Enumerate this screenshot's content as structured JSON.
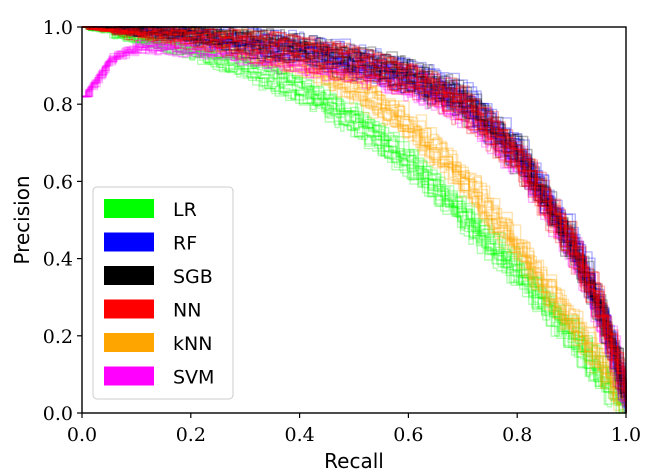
{
  "chart_data": {
    "type": "line",
    "title": "",
    "xlabel": "Recall",
    "ylabel": "Precision",
    "xlim": [
      0,
      1
    ],
    "ylim": [
      0,
      1.0
    ],
    "xticks": [
      "0.0",
      "0.2",
      "0.4",
      "0.6",
      "0.8",
      "1.0"
    ],
    "yticks": [
      "0.0",
      "0.2",
      "0.4",
      "0.6",
      "0.8",
      "1.0"
    ],
    "grid": false,
    "legend_position": "lower-left",
    "series": [
      {
        "name": "LR",
        "color": "#00ff00",
        "runs": 20,
        "x": [
          0,
          0.1,
          0.2,
          0.3,
          0.4,
          0.5,
          0.6,
          0.7,
          0.8,
          0.9,
          0.95,
          1.0
        ],
        "y": [
          1.0,
          0.97,
          0.94,
          0.9,
          0.84,
          0.76,
          0.65,
          0.51,
          0.36,
          0.2,
          0.1,
          0.02
        ]
      },
      {
        "name": "RF",
        "color": "#0000ff",
        "runs": 20,
        "x": [
          0,
          0.1,
          0.2,
          0.3,
          0.4,
          0.5,
          0.6,
          0.7,
          0.8,
          0.9,
          0.95,
          1.0
        ],
        "y": [
          1.0,
          0.99,
          0.98,
          0.96,
          0.94,
          0.91,
          0.87,
          0.81,
          0.67,
          0.43,
          0.26,
          0.03
        ]
      },
      {
        "name": "SGB",
        "color": "#000000",
        "runs": 20,
        "x": [
          0,
          0.1,
          0.2,
          0.3,
          0.4,
          0.5,
          0.6,
          0.7,
          0.8,
          0.9,
          0.95,
          1.0
        ],
        "y": [
          1.0,
          0.99,
          0.98,
          0.96,
          0.94,
          0.91,
          0.87,
          0.8,
          0.66,
          0.42,
          0.25,
          0.03
        ]
      },
      {
        "name": "NN",
        "color": "#ff0000",
        "runs": 20,
        "x": [
          0,
          0.1,
          0.2,
          0.3,
          0.4,
          0.5,
          0.6,
          0.7,
          0.8,
          0.9,
          0.95,
          1.0
        ],
        "y": [
          1.0,
          0.98,
          0.97,
          0.95,
          0.93,
          0.9,
          0.86,
          0.79,
          0.65,
          0.42,
          0.25,
          0.03
        ]
      },
      {
        "name": "kNN",
        "color": "#ffa500",
        "runs": 20,
        "x": [
          0,
          0.1,
          0.2,
          0.3,
          0.4,
          0.5,
          0.6,
          0.7,
          0.8,
          0.9,
          0.95,
          1.0
        ],
        "y": [
          1.0,
          0.99,
          0.98,
          0.95,
          0.91,
          0.84,
          0.74,
          0.6,
          0.42,
          0.22,
          0.12,
          0.02
        ]
      },
      {
        "name": "SVM",
        "color": "#ff00ff",
        "runs": 20,
        "x": [
          0,
          0.05,
          0.1,
          0.2,
          0.3,
          0.4,
          0.5,
          0.6,
          0.7,
          0.8,
          0.9,
          0.95,
          1.0
        ],
        "y": [
          0.82,
          0.92,
          0.95,
          0.95,
          0.94,
          0.92,
          0.9,
          0.86,
          0.79,
          0.65,
          0.42,
          0.25,
          0.03
        ]
      }
    ]
  }
}
